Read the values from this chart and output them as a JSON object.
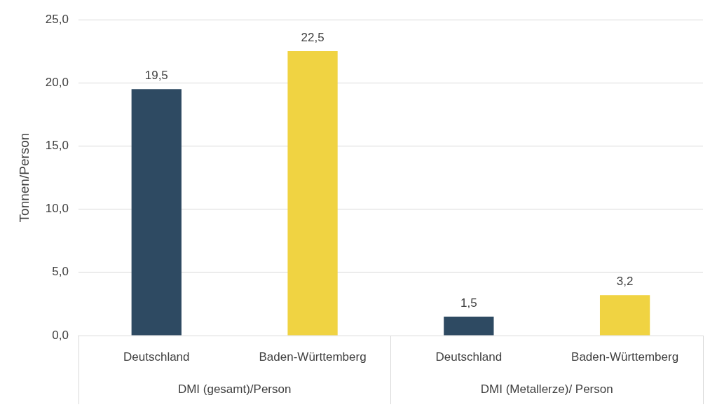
{
  "chart_data": {
    "type": "bar",
    "ylabel": "Tonnen/Person",
    "categories": [
      "DMI (gesamt)/Person",
      "DMI (Metallerze)/ Person"
    ],
    "series": [
      {
        "name": "Deutschland",
        "color": "#2e4a62",
        "values": [
          19.5,
          1.5
        ],
        "value_labels": [
          "19,5",
          "1,5"
        ]
      },
      {
        "name": "Baden-Württemberg",
        "color": "#f0d342",
        "values": [
          22.5,
          3.2
        ],
        "value_labels": [
          "22,5",
          "3,2"
        ]
      }
    ],
    "ylim": [
      0,
      25
    ],
    "yticks": [
      {
        "value": 0,
        "label": "0,0"
      },
      {
        "value": 5,
        "label": "5,0"
      },
      {
        "value": 10,
        "label": "10,0"
      },
      {
        "value": 15,
        "label": "15,0"
      },
      {
        "value": 20,
        "label": "20,0"
      },
      {
        "value": 25,
        "label": "25,0"
      }
    ],
    "grid": "y",
    "legend": false
  }
}
